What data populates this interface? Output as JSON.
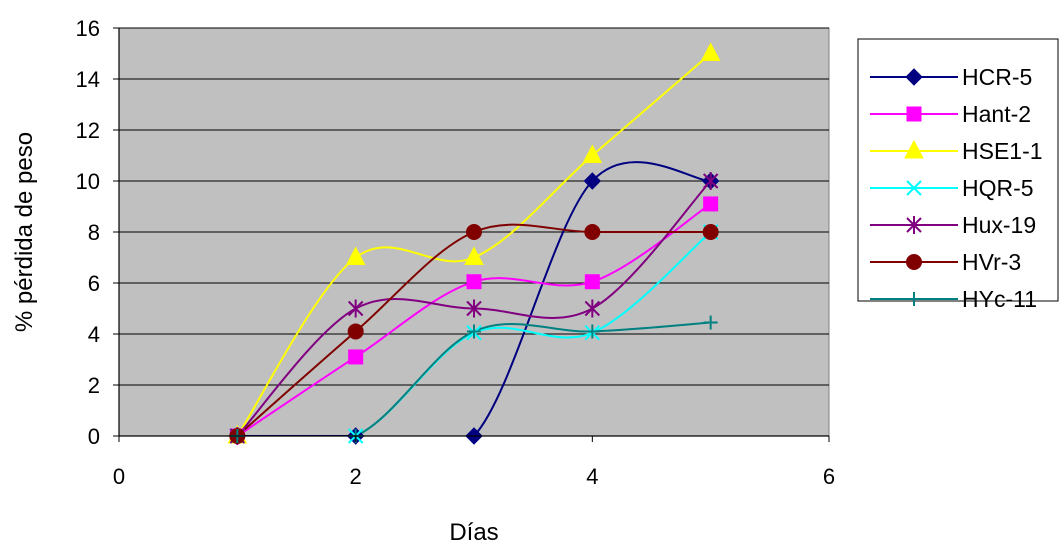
{
  "chart_data": {
    "type": "scatter",
    "title": "",
    "xlabel": "Días",
    "ylabel": "% pérdida de peso",
    "xlim": [
      0,
      6
    ],
    "ylim": [
      0,
      16
    ],
    "x_ticks": [
      "0",
      "2",
      "4",
      "6"
    ],
    "y_ticks": [
      "0",
      "2",
      "4",
      "6",
      "8",
      "10",
      "12",
      "14",
      "16"
    ],
    "grid": "horizontal",
    "legend_position": "right",
    "plot_background": "#c0c0c0",
    "smoothed_lines": true,
    "series": [
      {
        "name": "HCR-5",
        "color": "#000080",
        "marker": "diamond",
        "x": [
          1,
          2,
          3,
          4,
          5
        ],
        "y": [
          0,
          0,
          0,
          10,
          10
        ]
      },
      {
        "name": "Hant-2",
        "color": "#ff00ff",
        "marker": "square",
        "x": [
          1,
          2,
          3,
          4,
          5
        ],
        "y": [
          0,
          3.1,
          6.05,
          6.05,
          9.1
        ]
      },
      {
        "name": "HSE1-1",
        "color": "#ffff00",
        "marker": "triangle",
        "x": [
          1,
          2,
          3,
          4,
          5
        ],
        "y": [
          0,
          7,
          7,
          11,
          15
        ]
      },
      {
        "name": "HQR-5",
        "color": "#00ffff",
        "marker": "x",
        "x": [
          1,
          2,
          3,
          4,
          5
        ],
        "y": [
          0,
          0,
          4.05,
          4.05,
          8
        ]
      },
      {
        "name": "Hux-19",
        "color": "#800080",
        "marker": "star",
        "x": [
          1,
          2,
          3,
          4,
          5
        ],
        "y": [
          0,
          5,
          5,
          5,
          10
        ]
      },
      {
        "name": "HVr-3",
        "color": "#800000",
        "marker": "circle",
        "x": [
          1,
          2,
          3,
          4,
          5
        ],
        "y": [
          0,
          4.1,
          8,
          8,
          8
        ]
      },
      {
        "name": "HYc-11",
        "color": "#008080",
        "marker": "plus",
        "x": [
          1,
          2,
          3,
          4,
          5
        ],
        "y": [
          0,
          0,
          4.1,
          4.1,
          4.45
        ]
      }
    ]
  }
}
